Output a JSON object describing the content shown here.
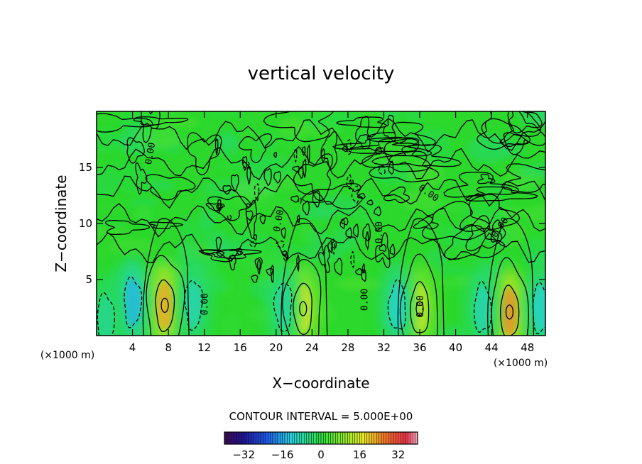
{
  "chart_data": {
    "type": "heatmap",
    "title": "vertical velocity",
    "xlabel": "X−coordinate",
    "ylabel": "Z−coordinate",
    "x_unit": "(×1000 m)",
    "x_unit_secondary": "(×1000 m)",
    "xlim": [
      0,
      50
    ],
    "ylim": [
      0,
      20
    ],
    "x_ticks": [
      4,
      8,
      12,
      16,
      20,
      24,
      28,
      32,
      36,
      40,
      44,
      48
    ],
    "y_ticks": [
      5,
      10,
      15
    ],
    "contour_interval_label": "CONTOUR INTERVAL = 5.000E+00",
    "colorbar_ticks": [
      -32,
      -16,
      0,
      16,
      32
    ],
    "colorbar_range": [
      -40,
      40
    ],
    "contour_labels": [
      {
        "text": "0.00",
        "x": 6.3,
        "y": 16.2,
        "rotate": -80
      },
      {
        "text": "0.00",
        "x": 12.4,
        "y": 2.8,
        "rotate": -90
      },
      {
        "text": "0.00",
        "x": 20.6,
        "y": 10.2,
        "rotate": -80
      },
      {
        "text": "0.00",
        "x": 30.2,
        "y": 3.2,
        "rotate": -90
      },
      {
        "text": "0.00",
        "x": 31.8,
        "y": 9.2,
        "rotate": -90
      },
      {
        "text": "0.00",
        "x": 36.4,
        "y": 2.6,
        "rotate": -90
      },
      {
        "text": "0.00",
        "x": 36.8,
        "y": 12.5,
        "rotate": 35
      },
      {
        "text": "0.00",
        "x": 45.2,
        "y": 9.5,
        "rotate": -55
      }
    ],
    "updrafts": [
      {
        "x": 7.6,
        "z": 2.7,
        "w": 22
      },
      {
        "x": 23.0,
        "z": 2.4,
        "w": 16
      },
      {
        "x": 36.0,
        "z": 2.4,
        "w": 14
      },
      {
        "x": 46.0,
        "z": 2.1,
        "w": 24
      }
    ],
    "downdrafts": [
      {
        "x": 4.0,
        "z": 3.0,
        "w": -14
      },
      {
        "x": 10.8,
        "z": 2.8,
        "w": -8
      },
      {
        "x": 20.8,
        "z": 2.6,
        "w": -7
      },
      {
        "x": 33.5,
        "z": 2.6,
        "w": -10
      },
      {
        "x": 43.0,
        "z": 2.4,
        "w": -8
      },
      {
        "x": 49.5,
        "z": 2.4,
        "w": -10
      },
      {
        "x": 1.0,
        "z": 1.5,
        "w": -6
      }
    ],
    "grid": false
  }
}
